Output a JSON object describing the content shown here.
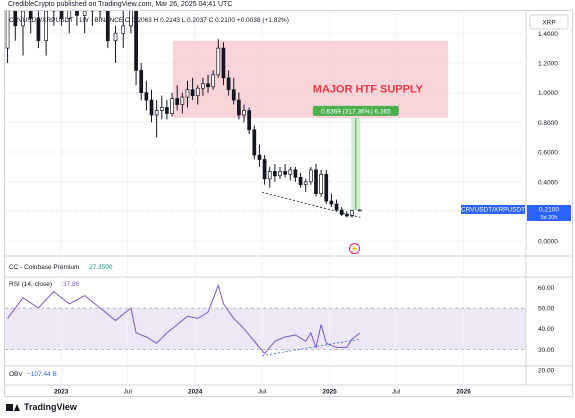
{
  "header": "CredibleCrypto published on TradingView.com, Mar 26, 2025 04:41 UTC",
  "footer_brand": "TradingView",
  "colors": {
    "up": "#ffffff",
    "down": "#131722",
    "wick": "#131722",
    "supply_zone": "#f7c9cf",
    "supply_text": "#f23645",
    "measure_box": "#c8e6c9",
    "measure_label_bg": "#4caf50",
    "price_tag": "#2962ff",
    "rsi_line": "#7e57c2",
    "rsi_band": "#ede7f6",
    "trendline": "#2962ff"
  },
  "chart_data": {
    "type": "candlestick",
    "price_panel": {
      "symbol_legend": {
        "symbol": "CRVUSDT/XRPUSDT · 1W · BINANCE",
        "ohlc": "O 0.2063 H 0.2143 L 0.2037 C 0.2100 +0.0038 (+1.82%)"
      },
      "currency_button": "XRP",
      "ylim": [
        -0.1,
        1.55
      ],
      "y_ticks": [
        0.0,
        0.2,
        0.4,
        0.6,
        0.8,
        1.0,
        1.2,
        1.4
      ],
      "y_tick_labels": [
        "0.0000",
        "0.2000",
        "0.4000",
        "0.6000",
        "0.8000",
        "1.0000",
        "1.2000",
        "1.4000"
      ],
      "last_price": 0.21,
      "last_price_label": "0.2100",
      "last_price_symbol": "CRVUSDT/XRPUSDT",
      "countdown": "5d 20h",
      "supply_zone": {
        "label": "MAJOR HTF SUPPLY",
        "y_low": 0.83,
        "y_high": 1.35,
        "x_start": "2023-11-01",
        "x_end": "2025-11-20"
      },
      "measure": {
        "label": "0.6369 (317.36%) 6,365",
        "y_low": 0.21,
        "y_high": 0.83,
        "x_start": "2025-03-01",
        "x_end": "2025-03-26"
      },
      "support_line": {
        "x0": "2024-07-01",
        "y0": 0.33,
        "x1": "2025-03-26",
        "y1": 0.16
      },
      "candles": [
        {
          "t": "2022-08-08",
          "o": 1.3,
          "h": 1.85,
          "l": 1.2,
          "c": 1.6
        },
        {
          "t": "2022-08-29",
          "o": 1.6,
          "h": 1.75,
          "l": 1.35,
          "c": 1.45
        },
        {
          "t": "2022-09-19",
          "o": 1.45,
          "h": 1.6,
          "l": 1.25,
          "c": 1.55
        },
        {
          "t": "2022-10-10",
          "o": 1.55,
          "h": 1.7,
          "l": 1.4,
          "c": 1.5
        },
        {
          "t": "2022-10-31",
          "o": 1.5,
          "h": 1.6,
          "l": 1.3,
          "c": 1.35
        },
        {
          "t": "2022-11-21",
          "o": 1.35,
          "h": 1.6,
          "l": 1.25,
          "c": 1.55
        },
        {
          "t": "2022-12-12",
          "o": 1.55,
          "h": 1.75,
          "l": 1.45,
          "c": 1.6
        },
        {
          "t": "2023-01-02",
          "o": 1.6,
          "h": 1.7,
          "l": 1.45,
          "c": 1.5
        },
        {
          "t": "2023-01-23",
          "o": 1.5,
          "h": 1.65,
          "l": 1.4,
          "c": 1.58
        },
        {
          "t": "2023-02-13",
          "o": 1.58,
          "h": 1.7,
          "l": 1.45,
          "c": 1.52
        },
        {
          "t": "2023-03-06",
          "o": 1.52,
          "h": 1.62,
          "l": 1.4,
          "c": 1.55
        },
        {
          "t": "2023-03-27",
          "o": 1.55,
          "h": 1.65,
          "l": 1.45,
          "c": 1.6
        },
        {
          "t": "2023-04-17",
          "o": 1.6,
          "h": 1.72,
          "l": 1.5,
          "c": 1.55
        },
        {
          "t": "2023-05-08",
          "o": 1.55,
          "h": 1.6,
          "l": 1.3,
          "c": 1.35
        },
        {
          "t": "2023-05-29",
          "o": 1.35,
          "h": 1.45,
          "l": 1.2,
          "c": 1.4
        },
        {
          "t": "2023-06-19",
          "o": 1.4,
          "h": 1.55,
          "l": 1.3,
          "c": 1.45
        },
        {
          "t": "2023-07-10",
          "o": 1.45,
          "h": 1.75,
          "l": 1.4,
          "c": 1.65
        },
        {
          "t": "2023-07-24",
          "o": 1.65,
          "h": 1.7,
          "l": 1.05,
          "c": 1.15
        },
        {
          "t": "2023-08-07",
          "o": 1.15,
          "h": 1.2,
          "l": 0.95,
          "c": 1.0
        },
        {
          "t": "2023-08-21",
          "o": 1.0,
          "h": 1.08,
          "l": 0.88,
          "c": 0.95
        },
        {
          "t": "2023-09-04",
          "o": 0.95,
          "h": 1.02,
          "l": 0.8,
          "c": 0.85
        },
        {
          "t": "2023-09-18",
          "o": 0.85,
          "h": 0.95,
          "l": 0.7,
          "c": 0.88
        },
        {
          "t": "2023-10-02",
          "o": 0.88,
          "h": 0.98,
          "l": 0.82,
          "c": 0.9
        },
        {
          "t": "2023-10-16",
          "o": 0.9,
          "h": 0.95,
          "l": 0.82,
          "c": 0.86
        },
        {
          "t": "2023-10-30",
          "o": 0.86,
          "h": 1.0,
          "l": 0.84,
          "c": 0.96
        },
        {
          "t": "2023-11-13",
          "o": 0.96,
          "h": 1.05,
          "l": 0.88,
          "c": 0.92
        },
        {
          "t": "2023-11-27",
          "o": 0.92,
          "h": 1.0,
          "l": 0.86,
          "c": 0.97
        },
        {
          "t": "2023-12-11",
          "o": 0.97,
          "h": 1.08,
          "l": 0.9,
          "c": 1.02
        },
        {
          "t": "2023-12-25",
          "o": 1.02,
          "h": 1.1,
          "l": 0.95,
          "c": 0.98
        },
        {
          "t": "2024-01-08",
          "o": 0.98,
          "h": 1.05,
          "l": 0.92,
          "c": 1.03
        },
        {
          "t": "2024-01-22",
          "o": 1.03,
          "h": 1.1,
          "l": 0.98,
          "c": 1.06
        },
        {
          "t": "2024-02-05",
          "o": 1.06,
          "h": 1.12,
          "l": 1.0,
          "c": 1.04
        },
        {
          "t": "2024-02-19",
          "o": 1.04,
          "h": 1.15,
          "l": 1.02,
          "c": 1.12
        },
        {
          "t": "2024-03-04",
          "o": 1.12,
          "h": 1.36,
          "l": 1.1,
          "c": 1.3
        },
        {
          "t": "2024-03-18",
          "o": 1.3,
          "h": 1.34,
          "l": 1.05,
          "c": 1.1
        },
        {
          "t": "2024-04-01",
          "o": 1.1,
          "h": 1.15,
          "l": 0.98,
          "c": 1.02
        },
        {
          "t": "2024-04-15",
          "o": 1.02,
          "h": 1.1,
          "l": 0.92,
          "c": 0.95
        },
        {
          "t": "2024-04-29",
          "o": 0.95,
          "h": 1.0,
          "l": 0.82,
          "c": 0.85
        },
        {
          "t": "2024-05-13",
          "o": 0.85,
          "h": 0.92,
          "l": 0.8,
          "c": 0.88
        },
        {
          "t": "2024-05-27",
          "o": 0.88,
          "h": 0.9,
          "l": 0.72,
          "c": 0.75
        },
        {
          "t": "2024-06-10",
          "o": 0.75,
          "h": 0.78,
          "l": 0.55,
          "c": 0.58
        },
        {
          "t": "2024-06-24",
          "o": 0.58,
          "h": 0.65,
          "l": 0.5,
          "c": 0.55
        },
        {
          "t": "2024-07-08",
          "o": 0.55,
          "h": 0.58,
          "l": 0.38,
          "c": 0.42
        },
        {
          "t": "2024-07-22",
          "o": 0.42,
          "h": 0.5,
          "l": 0.36,
          "c": 0.47
        },
        {
          "t": "2024-08-05",
          "o": 0.47,
          "h": 0.52,
          "l": 0.4,
          "c": 0.44
        },
        {
          "t": "2024-08-19",
          "o": 0.44,
          "h": 0.5,
          "l": 0.42,
          "c": 0.47
        },
        {
          "t": "2024-09-02",
          "o": 0.47,
          "h": 0.52,
          "l": 0.43,
          "c": 0.45
        },
        {
          "t": "2024-09-16",
          "o": 0.45,
          "h": 0.5,
          "l": 0.41,
          "c": 0.48
        },
        {
          "t": "2024-09-30",
          "o": 0.48,
          "h": 0.5,
          "l": 0.4,
          "c": 0.43
        },
        {
          "t": "2024-10-14",
          "o": 0.43,
          "h": 0.46,
          "l": 0.36,
          "c": 0.38
        },
        {
          "t": "2024-10-28",
          "o": 0.38,
          "h": 0.42,
          "l": 0.33,
          "c": 0.4
        },
        {
          "t": "2024-11-11",
          "o": 0.4,
          "h": 0.5,
          "l": 0.38,
          "c": 0.48
        },
        {
          "t": "2024-11-25",
          "o": 0.48,
          "h": 0.52,
          "l": 0.3,
          "c": 0.32
        },
        {
          "t": "2024-12-09",
          "o": 0.32,
          "h": 0.48,
          "l": 0.3,
          "c": 0.45
        },
        {
          "t": "2024-12-23",
          "o": 0.45,
          "h": 0.48,
          "l": 0.25,
          "c": 0.27
        },
        {
          "t": "2025-01-06",
          "o": 0.27,
          "h": 0.32,
          "l": 0.23,
          "c": 0.25
        },
        {
          "t": "2025-01-20",
          "o": 0.25,
          "h": 0.28,
          "l": 0.2,
          "c": 0.21
        },
        {
          "t": "2025-02-03",
          "o": 0.21,
          "h": 0.23,
          "l": 0.17,
          "c": 0.18
        },
        {
          "t": "2025-02-17",
          "o": 0.18,
          "h": 0.2,
          "l": 0.16,
          "c": 0.17
        },
        {
          "t": "2025-03-03",
          "o": 0.17,
          "h": 0.21,
          "l": 0.16,
          "c": 0.206
        },
        {
          "t": "2025-03-24",
          "o": 0.2063,
          "h": 0.2143,
          "l": 0.2037,
          "c": 0.21
        }
      ]
    },
    "premium_panel": {
      "label": "CC - Coinbase Premium",
      "value": "27.3500"
    },
    "rsi_panel": {
      "label": "RSI (14, close)",
      "value": "37.86",
      "ylim": [
        22,
        65
      ],
      "y_ticks": [
        20,
        30,
        40,
        50,
        60
      ],
      "y_tick_labels": [
        "20.00",
        "30.00",
        "40.00",
        "50.00",
        "60.00"
      ],
      "band": [
        30,
        50
      ],
      "support_line": {
        "x0": "2024-07-01",
        "y0": 27,
        "x1": "2025-03-26",
        "y1": 35
      },
      "points": [
        {
          "t": "2022-08-08",
          "v": 45
        },
        {
          "t": "2022-09-19",
          "v": 55
        },
        {
          "t": "2022-10-31",
          "v": 50
        },
        {
          "t": "2022-12-12",
          "v": 58
        },
        {
          "t": "2023-01-23",
          "v": 52
        },
        {
          "t": "2023-03-06",
          "v": 56
        },
        {
          "t": "2023-04-17",
          "v": 50
        },
        {
          "t": "2023-05-29",
          "v": 44
        },
        {
          "t": "2023-07-10",
          "v": 50
        },
        {
          "t": "2023-07-24",
          "v": 38
        },
        {
          "t": "2023-08-21",
          "v": 36
        },
        {
          "t": "2023-09-18",
          "v": 33
        },
        {
          "t": "2023-10-16",
          "v": 38
        },
        {
          "t": "2023-11-13",
          "v": 42
        },
        {
          "t": "2023-12-11",
          "v": 46
        },
        {
          "t": "2024-01-08",
          "v": 45
        },
        {
          "t": "2024-02-05",
          "v": 48
        },
        {
          "t": "2024-03-04",
          "v": 61
        },
        {
          "t": "2024-03-18",
          "v": 52
        },
        {
          "t": "2024-04-15",
          "v": 45
        },
        {
          "t": "2024-05-13",
          "v": 40
        },
        {
          "t": "2024-06-10",
          "v": 34
        },
        {
          "t": "2024-07-08",
          "v": 28
        },
        {
          "t": "2024-08-05",
          "v": 34
        },
        {
          "t": "2024-09-02",
          "v": 36
        },
        {
          "t": "2024-09-30",
          "v": 37
        },
        {
          "t": "2024-10-28",
          "v": 34
        },
        {
          "t": "2024-11-11",
          "v": 38
        },
        {
          "t": "2024-11-25",
          "v": 31
        },
        {
          "t": "2024-12-09",
          "v": 42
        },
        {
          "t": "2024-12-23",
          "v": 33
        },
        {
          "t": "2025-01-20",
          "v": 31
        },
        {
          "t": "2025-02-17",
          "v": 31
        },
        {
          "t": "2025-03-03",
          "v": 35
        },
        {
          "t": "2025-03-24",
          "v": 37.86
        }
      ]
    },
    "obv_panel": {
      "label": "OBV",
      "value": "−107.44 B"
    },
    "x_axis": {
      "range": [
        "2022-08-01",
        "2026-06-20"
      ],
      "ticks": [
        {
          "t": "2023-01-01",
          "label": "2023",
          "bold": true
        },
        {
          "t": "2023-07-01",
          "label": "Jul",
          "bold": false
        },
        {
          "t": "2024-01-01",
          "label": "2024",
          "bold": true
        },
        {
          "t": "2024-07-01",
          "label": "Jul",
          "bold": false
        },
        {
          "t": "2025-01-01",
          "label": "2025",
          "bold": true
        },
        {
          "t": "2025-07-01",
          "label": "Jul",
          "bold": false
        },
        {
          "t": "2026-01-01",
          "label": "2026",
          "bold": true
        }
      ]
    }
  }
}
